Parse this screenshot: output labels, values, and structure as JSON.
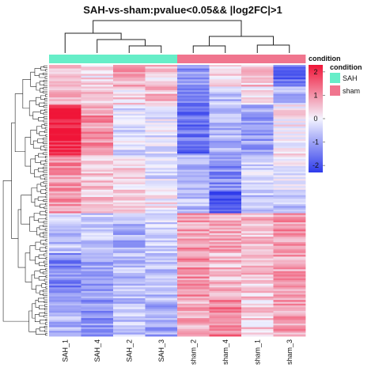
{
  "chart_data": {
    "type": "heatmap",
    "title": "SAH-vs-sham:pvalue<0.05&& |log2FC|>1",
    "columns": [
      "SAH_1",
      "SAH_4",
      "SAH_2",
      "SAH_3",
      "sham_2",
      "sham_4",
      "sham_1",
      "sham_3"
    ],
    "annotation": {
      "name": "condition",
      "values": [
        "SAH",
        "SAH",
        "SAH",
        "SAH",
        "sham",
        "sham",
        "sham",
        "sham"
      ],
      "legend": [
        {
          "label": "SAH",
          "color": "#66EEC8"
        },
        {
          "label": "sham",
          "color": "#F0758E"
        }
      ]
    },
    "colorbar": {
      "ticks": [
        "2",
        "1",
        "0",
        "-1",
        "-2"
      ],
      "min": -2.3,
      "max": 2.3,
      "low_color": "#2E3BEB",
      "mid_color": "#F4F4FF",
      "high_color": "#F01538",
      "label": "condition"
    },
    "row_blocks": [
      {
        "rows": 12,
        "values": [
          0.6,
          0.2,
          0.8,
          0.4,
          -1.2,
          0.3,
          0.5,
          -1.6
        ]
      },
      {
        "rows": 10,
        "values": [
          0.8,
          0.5,
          0.3,
          0.6,
          -1.4,
          -0.6,
          0.2,
          -0.9
        ]
      },
      {
        "rows": 28,
        "values": [
          2.2,
          1.0,
          -0.3,
          -0.2,
          -1.6,
          -0.8,
          -1.0,
          0.1
        ]
      },
      {
        "rows": 20,
        "values": [
          1.0,
          0.6,
          0.3,
          -0.3,
          -0.8,
          -1.2,
          -0.4,
          -0.2
        ]
      },
      {
        "rows": 12,
        "values": [
          0.9,
          0.4,
          0.2,
          0.1,
          -0.7,
          -2.0,
          -0.5,
          -0.6
        ]
      },
      {
        "rows": 22,
        "values": [
          -0.6,
          -0.5,
          -0.8,
          -0.3,
          0.9,
          0.8,
          0.6,
          1.0
        ]
      },
      {
        "rows": 26,
        "values": [
          -1.3,
          -1.0,
          -0.7,
          -0.6,
          1.0,
          0.6,
          0.5,
          0.8
        ]
      },
      {
        "rows": 20,
        "values": [
          -0.8,
          -1.2,
          -0.6,
          -0.9,
          0.7,
          1.2,
          0.4,
          0.9
        ]
      }
    ]
  }
}
